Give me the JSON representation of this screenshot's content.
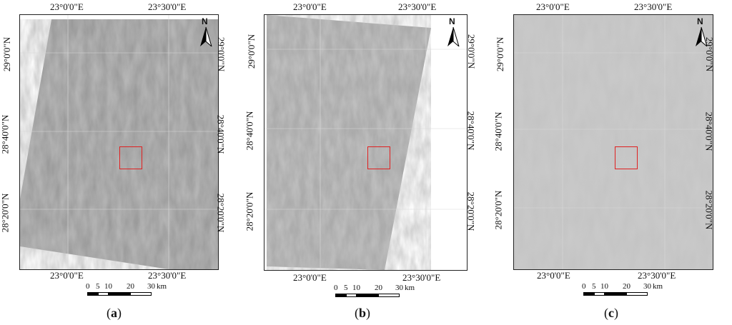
{
  "panels": [
    {
      "caption_open": "(",
      "caption_letter": "a",
      "caption_close": ")",
      "top_lon_labels": [
        "23°0'0\"E",
        "23°30'0\"E"
      ],
      "bottom_lon_labels": [
        "23°0'0\"E",
        "23°30'0\"E"
      ],
      "left_lat_labels": [
        "29°0'0\"N",
        "28°40'0\"N",
        "28°20'0\"N"
      ],
      "right_lat_labels": [
        "29°0'0\"N",
        "28°40'0\"N",
        "28°20'0\"N"
      ],
      "north_label": "N",
      "scale_labels": [
        "0",
        "5",
        "10",
        "20",
        "30",
        "km"
      ]
    },
    {
      "caption_open": "(",
      "caption_letter": "b",
      "caption_close": ")",
      "top_lon_labels": [
        "23°0'0\"E",
        "23°30'0\"E"
      ],
      "bottom_lon_labels": [
        "23°0'0\"E",
        "23°30'0\"E"
      ],
      "left_lat_labels": [
        "29°0'0\"N",
        "28°40'0\"N",
        "28°20'0\"N"
      ],
      "right_lat_labels": [
        "29°0'0\"N",
        "28°40'0\"N",
        "28°20'0\"N"
      ],
      "north_label": "N",
      "scale_labels": [
        "0",
        "5",
        "10",
        "20",
        "30",
        "km"
      ]
    },
    {
      "caption_open": "(",
      "caption_letter": "c",
      "caption_close": ")",
      "top_lon_labels": [
        "23°0'0\"E",
        "23°30'0\"E"
      ],
      "bottom_lon_labels": [
        "23°0'0\"E",
        "23°30'0\"E"
      ],
      "left_lat_labels": [
        "29°0'0\"N",
        "28°40'0\"N",
        "28°20'0\"N"
      ],
      "right_lat_labels": [
        "29°0'0\"N",
        "28°40'0\"N",
        "28°20'0\"N"
      ],
      "north_label": "N",
      "scale_labels": [
        "0",
        "5",
        "10",
        "20",
        "30",
        "km"
      ]
    }
  ],
  "colors": {
    "roi_box": "#e02020",
    "graticule": "#d8d8d8",
    "image_a": "#9a9a9a",
    "image_b": "#a8a8a8",
    "image_c": "#c4c4c4"
  }
}
